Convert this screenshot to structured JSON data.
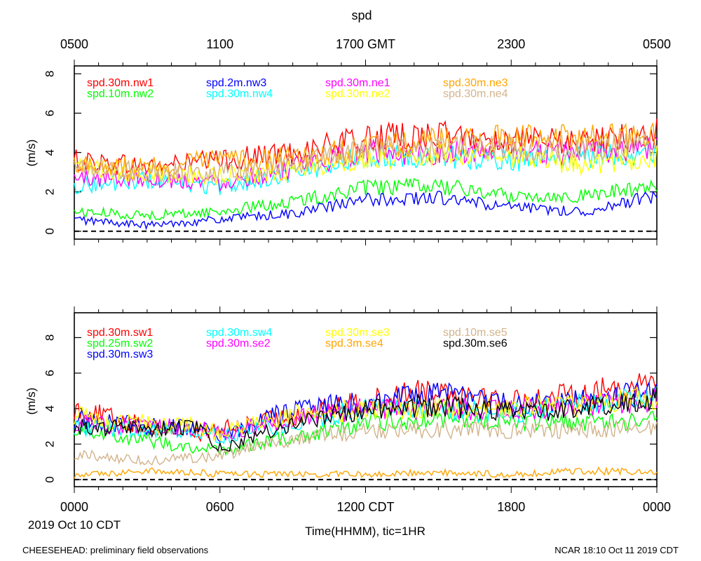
{
  "chart_data": [
    {
      "type": "line",
      "title": "spd",
      "ylabel": "(m/s)",
      "ylim": [
        -0.4,
        8.4
      ],
      "yticks": [
        0,
        2,
        4,
        6,
        8
      ],
      "top_xticks": [
        "0500",
        "1100",
        "1700 GMT",
        "2300",
        "0500"
      ],
      "series": [
        {
          "name": "spd.30m.nw1",
          "color": "#ff0000",
          "start": 3.6,
          "points": [
            [
              0,
              3.6
            ],
            [
              3,
              3.3
            ],
            [
              6,
              3.6
            ],
            [
              9,
              4.0
            ],
            [
              12,
              4.7
            ],
            [
              15,
              4.9
            ],
            [
              18,
              4.6
            ],
            [
              21,
              4.5
            ],
            [
              24,
              5.0
            ]
          ]
        },
        {
          "name": "spd.10m.nw2",
          "color": "#00ff00",
          "start": 1.0,
          "points": [
            [
              0,
              1.0
            ],
            [
              3,
              0.8
            ],
            [
              6,
              1.0
            ],
            [
              9,
              1.5
            ],
            [
              12,
              2.2
            ],
            [
              15,
              2.3
            ],
            [
              18,
              1.8
            ],
            [
              21,
              1.8
            ],
            [
              24,
              2.3
            ]
          ]
        },
        {
          "name": "spd.2m.nw3",
          "color": "#0000ff",
          "start": 0.6,
          "points": [
            [
              0,
              0.6
            ],
            [
              3,
              0.3
            ],
            [
              6,
              0.6
            ],
            [
              9,
              0.9
            ],
            [
              12,
              1.6
            ],
            [
              15,
              1.7
            ],
            [
              18,
              1.2
            ],
            [
              21,
              1.0
            ],
            [
              24,
              1.8
            ]
          ]
        },
        {
          "name": "spd.30m.nw4",
          "color": "#00ffff",
          "start": 2.3,
          "points": [
            [
              0,
              2.3
            ],
            [
              3,
              2.6
            ],
            [
              6,
              2.2
            ],
            [
              9,
              3.0
            ],
            [
              12,
              3.8
            ],
            [
              15,
              3.8
            ],
            [
              18,
              3.6
            ],
            [
              21,
              3.8
            ],
            [
              24,
              4.0
            ]
          ]
        },
        {
          "name": "spd.30m.ne1",
          "color": "#ff00ff",
          "start": 2.7,
          "points": [
            [
              0,
              2.7
            ],
            [
              3,
              2.7
            ],
            [
              6,
              2.5
            ],
            [
              9,
              3.2
            ],
            [
              12,
              4.0
            ],
            [
              15,
              4.0
            ],
            [
              18,
              4.0
            ],
            [
              21,
              4.0
            ],
            [
              24,
              4.3
            ]
          ]
        },
        {
          "name": "spd.30m.ne2",
          "color": "#ffff00",
          "start": 3.2,
          "points": [
            [
              0,
              3.2
            ],
            [
              3,
              3.0
            ],
            [
              6,
              2.8
            ],
            [
              9,
              3.1
            ],
            [
              12,
              3.7
            ],
            [
              15,
              3.9
            ],
            [
              18,
              3.8
            ],
            [
              21,
              3.4
            ],
            [
              24,
              3.8
            ]
          ]
        },
        {
          "name": "spd.30m.ne3",
          "color": "#ffa500",
          "start": 3.5,
          "points": [
            [
              0,
              3.5
            ],
            [
              3,
              3.2
            ],
            [
              6,
              3.6
            ],
            [
              9,
              3.7
            ],
            [
              12,
              4.2
            ],
            [
              15,
              4.6
            ],
            [
              18,
              4.7
            ],
            [
              21,
              4.7
            ],
            [
              24,
              4.8
            ]
          ]
        },
        {
          "name": "spd.30m.ne4",
          "color": "#d2b48c",
          "start": 3.3,
          "points": [
            [
              0,
              3.3
            ],
            [
              3,
              3.0
            ],
            [
              6,
              3.0
            ],
            [
              9,
              3.4
            ],
            [
              12,
              4.2
            ],
            [
              15,
              4.2
            ],
            [
              18,
              4.3
            ],
            [
              21,
              4.2
            ],
            [
              24,
              4.5
            ]
          ]
        }
      ]
    },
    {
      "type": "line",
      "ylabel": "(m/s)",
      "ylim": [
        -0.4,
        9.4
      ],
      "yticks": [
        0,
        2,
        4,
        6,
        8
      ],
      "xticks": [
        "0000",
        "0600",
        "1200 CDT",
        "1800",
        "0000"
      ],
      "xlabel": "Time(HHMM), tic=1HR",
      "date_label": "2019 Oct 10 CDT",
      "series": [
        {
          "name": "spd.30m.sw1",
          "color": "#ff0000",
          "start": 4.0,
          "points": [
            [
              0,
              4.0
            ],
            [
              3,
              3.0
            ],
            [
              5,
              2.6
            ],
            [
              6,
              2.8
            ],
            [
              9,
              3.6
            ],
            [
              12,
              4.4
            ],
            [
              15,
              5.2
            ],
            [
              18,
              4.4
            ],
            [
              21,
              4.8
            ],
            [
              24,
              5.6
            ]
          ]
        },
        {
          "name": "spd.25m.sw2",
          "color": "#00ff00",
          "start": 3.0,
          "points": [
            [
              0,
              3.0
            ],
            [
              3,
              2.2
            ],
            [
              5,
              1.8
            ],
            [
              6,
              1.6
            ],
            [
              9,
              2.4
            ],
            [
              12,
              3.2
            ],
            [
              15,
              3.4
            ],
            [
              18,
              3.2
            ],
            [
              21,
              3.2
            ],
            [
              24,
              3.4
            ]
          ]
        },
        {
          "name": "spd.30m.sw3",
          "color": "#0000ff",
          "start": 3.4,
          "points": [
            [
              0,
              3.4
            ],
            [
              3,
              3.0
            ],
            [
              5,
              3.0
            ],
            [
              6,
              2.4
            ],
            [
              9,
              4.0
            ],
            [
              12,
              4.4
            ],
            [
              15,
              4.8
            ],
            [
              18,
              4.2
            ],
            [
              21,
              4.4
            ],
            [
              24,
              5.0
            ]
          ]
        },
        {
          "name": "spd.30m.sw4",
          "color": "#00ffff",
          "start": 3.0,
          "points": [
            [
              0,
              3.0
            ],
            [
              3,
              2.8
            ],
            [
              5,
              2.8
            ],
            [
              6,
              2.4
            ],
            [
              9,
              3.2
            ],
            [
              12,
              4.0
            ],
            [
              15,
              4.0
            ],
            [
              18,
              3.8
            ],
            [
              21,
              4.2
            ],
            [
              24,
              4.6
            ]
          ]
        },
        {
          "name": "spd.30m.se2",
          "color": "#ff00ff",
          "start": 3.2,
          "points": [
            [
              0,
              3.2
            ],
            [
              3,
              2.9
            ],
            [
              5,
              3.0
            ],
            [
              6,
              2.6
            ],
            [
              9,
              3.4
            ],
            [
              12,
              4.0
            ],
            [
              15,
              4.0
            ],
            [
              18,
              3.9
            ],
            [
              21,
              4.2
            ],
            [
              24,
              4.5
            ]
          ]
        },
        {
          "name": "spd.30m.se3",
          "color": "#ffff00",
          "start": 3.6,
          "points": [
            [
              0,
              3.6
            ],
            [
              3,
              3.1
            ],
            [
              5,
              3.0
            ],
            [
              6,
              2.6
            ],
            [
              9,
              3.6
            ],
            [
              12,
              4.0
            ],
            [
              15,
              4.0
            ],
            [
              18,
              4.0
            ],
            [
              21,
              4.2
            ],
            [
              24,
              4.6
            ]
          ]
        },
        {
          "name": "spd.3m.se4",
          "color": "#ffa500",
          "start": 0.2,
          "points": [
            [
              0,
              0.2
            ],
            [
              3,
              0.5
            ],
            [
              5,
              0.4
            ],
            [
              6,
              0.3
            ],
            [
              9,
              0.3
            ],
            [
              12,
              0.3
            ],
            [
              15,
              0.4
            ],
            [
              18,
              0.3
            ],
            [
              21,
              0.5
            ],
            [
              24,
              0.4
            ]
          ]
        },
        {
          "name": "spd.10m.se5",
          "color": "#d2b48c",
          "start": 1.4,
          "points": [
            [
              0,
              1.4
            ],
            [
              3,
              1.1
            ],
            [
              5,
              1.2
            ],
            [
              6,
              1.4
            ],
            [
              9,
              2.2
            ],
            [
              12,
              2.8
            ],
            [
              15,
              2.8
            ],
            [
              18,
              2.8
            ],
            [
              21,
              2.8
            ],
            [
              24,
              3.0
            ]
          ]
        },
        {
          "name": "spd.30m.se6",
          "color": "#000000",
          "start": 3.0,
          "points": [
            [
              0,
              3.0
            ],
            [
              3,
              2.8
            ],
            [
              5,
              3.0
            ],
            [
              6,
              1.8
            ],
            [
              9,
              3.2
            ],
            [
              12,
              4.0
            ],
            [
              15,
              4.2
            ],
            [
              18,
              3.8
            ],
            [
              21,
              4.0
            ],
            [
              24,
              4.6
            ]
          ]
        }
      ]
    }
  ],
  "footer": {
    "left": "CHEESEHEAD: preliminary field observations",
    "right": "NCAR 18:10 Oct 11 2019 CDT"
  }
}
